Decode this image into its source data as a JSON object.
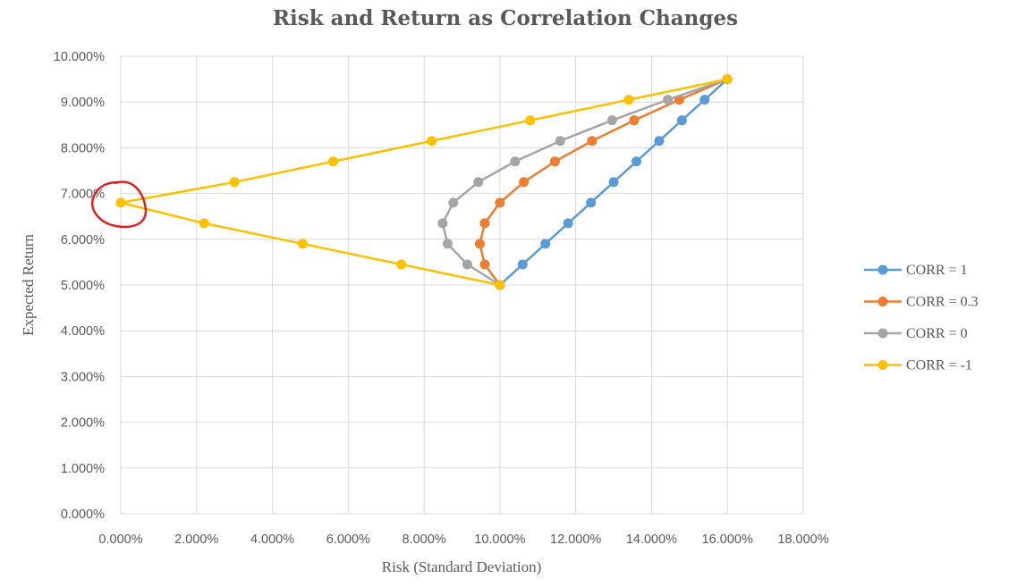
{
  "chart_data": {
    "type": "line",
    "title": "Risk and Return as Correlation Changes",
    "xlabel": "Risk (Standard Deviation)",
    "ylabel": "Expected Return",
    "xlim": [
      0,
      18
    ],
    "ylim": [
      0,
      10
    ],
    "x_ticks": [
      "0.000%",
      "2.000%",
      "4.000%",
      "6.000%",
      "8.000%",
      "10.000%",
      "12.000%",
      "14.000%",
      "16.000%",
      "18.000%"
    ],
    "y_ticks": [
      "0.000%",
      "1.000%",
      "2.000%",
      "3.000%",
      "4.000%",
      "5.000%",
      "6.000%",
      "7.000%",
      "8.000%",
      "9.000%",
      "10.000%"
    ],
    "grid": true,
    "legend_position": "right",
    "y_values": [
      5.0,
      5.45,
      5.9,
      6.35,
      6.8,
      7.25,
      7.7,
      8.15,
      8.6,
      9.05,
      9.5
    ],
    "series": [
      {
        "name": "CORR = 1",
        "color": "#5B9BD5",
        "x": [
          10.0,
          10.6,
          11.2,
          11.8,
          12.4,
          13.0,
          13.6,
          14.2,
          14.8,
          15.4,
          16.0
        ]
      },
      {
        "name": "CORR = 0.3",
        "color": "#ED7D31",
        "x": [
          10.0,
          9.6,
          9.47,
          9.6,
          10.0,
          10.63,
          11.45,
          12.43,
          13.54,
          14.73,
          16.0
        ]
      },
      {
        "name": "CORR = 0",
        "color": "#A5A5A5",
        "x": [
          10.0,
          9.14,
          8.62,
          8.49,
          8.77,
          9.43,
          10.4,
          11.59,
          12.96,
          14.43,
          16.0
        ]
      },
      {
        "name": "CORR = -1",
        "color": "#FFC000",
        "x": [
          10.0,
          7.4,
          4.8,
          2.2,
          0.0,
          3.0,
          5.6,
          8.2,
          10.8,
          13.4,
          16.0
        ]
      }
    ],
    "annotation": {
      "type": "red-circle",
      "target": "CORR = -1 minimum-risk point",
      "color": "#E02020"
    }
  }
}
